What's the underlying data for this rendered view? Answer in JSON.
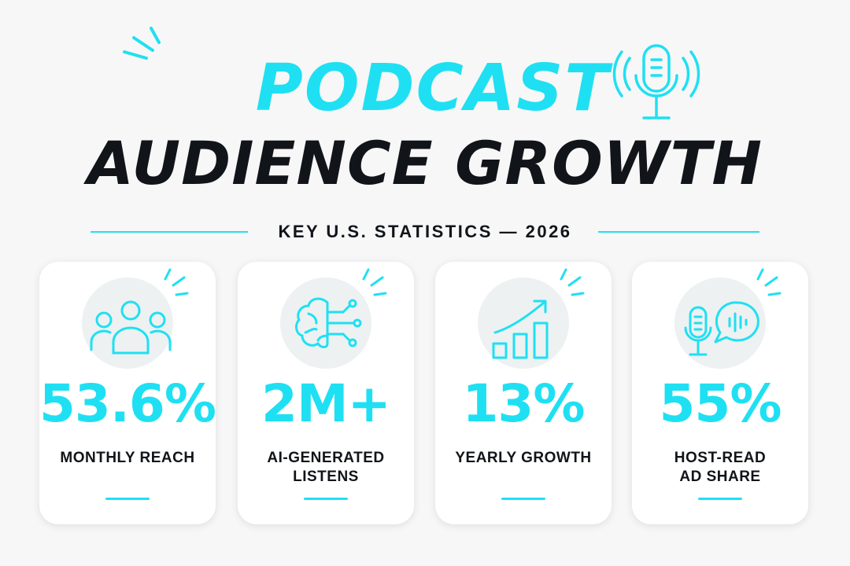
{
  "colors": {
    "accent": "#1fe0f2",
    "dark": "#111419",
    "background": "#f7f7f8"
  },
  "header": {
    "title_line1": "PODCAST",
    "title_line2": "AUDIENCE GROWTH",
    "subtitle": "KEY U.S. STATISTICS — 2026",
    "icon": "microphone-icon"
  },
  "stats": [
    {
      "value": "53.6%",
      "label_line1": "MONTHLY REACH",
      "label_line2": "",
      "icon": "audience-group-icon"
    },
    {
      "value": "2M+",
      "label_line1": "AI-GENERATED",
      "label_line2": "LISTENS",
      "icon": "brain-circuit-icon"
    },
    {
      "value": "13%",
      "label_line1": "YEARLY GROWTH",
      "label_line2": "",
      "icon": "growth-chart-icon"
    },
    {
      "value": "55%",
      "label_line1": "HOST-READ",
      "label_line2": "AD SHARE",
      "icon": "mic-speech-icon"
    }
  ]
}
